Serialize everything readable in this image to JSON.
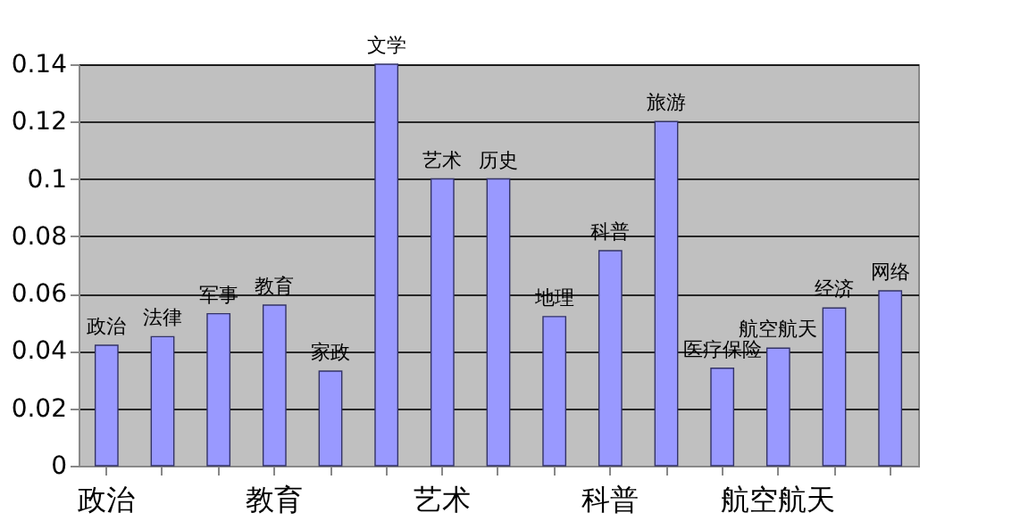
{
  "chart_data": {
    "type": "bar",
    "categories": [
      "政治",
      null,
      null,
      "教育",
      null,
      null,
      "艺术",
      null,
      null,
      "科普",
      null,
      null,
      "航空航天",
      null,
      null
    ],
    "values": [
      0.042,
      0.045,
      0.053,
      0.056,
      0.033,
      0.14,
      0.1,
      0.1,
      0.052,
      0.075,
      0.12,
      0.034,
      0.041,
      0.055,
      0.061
    ],
    "color": "#9999ff",
    "ylim": [
      0,
      0.14
    ],
    "yticks": [
      0,
      0.02,
      0.04,
      0.06,
      0.08,
      0.1,
      0.12,
      0.14
    ],
    "grid": "y",
    "annotations": [
      {
        "text": "政治",
        "x": "政治",
        "y": 0.042
      },
      {
        "text": "法律",
        "y": 0.045
      },
      {
        "text": "军事",
        "y": 0.053
      },
      {
        "text": "教育",
        "x": "教育",
        "y": 0.056
      },
      {
        "text": "家政",
        "y": 0.033
      },
      {
        "text": "文学",
        "y": 0.14
      },
      {
        "text": "艺术",
        "x": "艺术",
        "y": 0.1
      },
      {
        "text": "历史",
        "y": 0.1
      },
      {
        "text": "地理",
        "y": 0.052
      },
      {
        "text": "科普",
        "x": "科普",
        "y": 0.075
      },
      {
        "text": "旅游",
        "y": 0.12
      },
      {
        "text": "医疗保险",
        "y": 0.034
      },
      {
        "text": "航空航天",
        "x": "航空航天",
        "y": 0.041
      },
      {
        "text": "经济",
        "y": 0.055
      },
      {
        "text": "网络",
        "y": 0.061
      }
    ]
  }
}
